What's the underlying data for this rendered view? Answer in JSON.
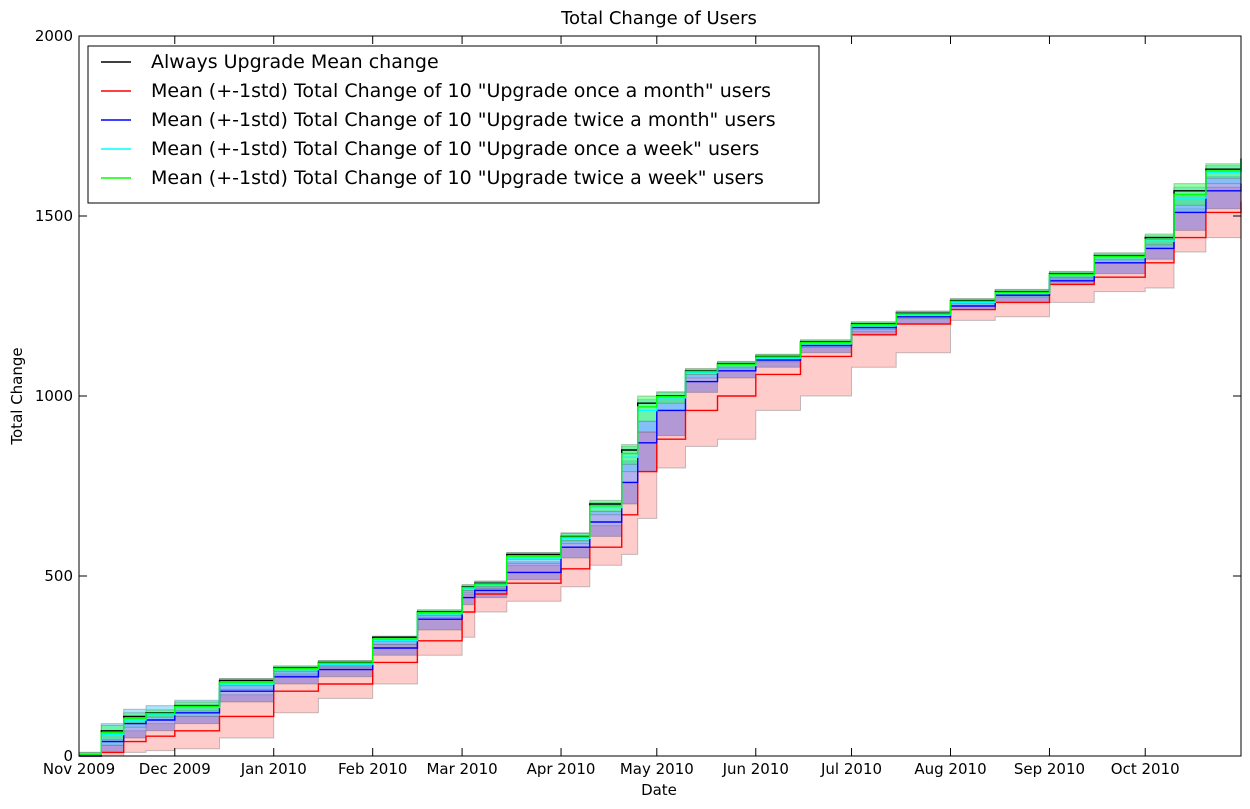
{
  "chart_data": {
    "type": "area",
    "title": "Total Change of Users",
    "xlabel": "Date",
    "ylabel": "Total Change",
    "xlim": [
      "2009-11-01",
      "2010-10-31"
    ],
    "ylim": [
      0,
      2000
    ],
    "yticks": [
      0,
      500,
      1000,
      1500,
      2000
    ],
    "xticks": [
      {
        "date": "2009-11-01",
        "label": "Nov 2009"
      },
      {
        "date": "2009-12-01",
        "label": "Dec 2009"
      },
      {
        "date": "2010-01-01",
        "label": "Jan 2010"
      },
      {
        "date": "2010-02-01",
        "label": "Feb 2010"
      },
      {
        "date": "2010-03-01",
        "label": "Mar 2010"
      },
      {
        "date": "2010-04-01",
        "label": "Apr 2010"
      },
      {
        "date": "2010-05-01",
        "label": "May 2010"
      },
      {
        "date": "2010-06-01",
        "label": "Jun 2010"
      },
      {
        "date": "2010-07-01",
        "label": "Jul 2010"
      },
      {
        "date": "2010-08-01",
        "label": "Aug 2010"
      },
      {
        "date": "2010-09-01",
        "label": "Sep 2010"
      },
      {
        "date": "2010-10-01",
        "label": "Oct 2010"
      }
    ],
    "legend_position": "top-left",
    "grid": false,
    "x": [
      "2009-11-01",
      "2009-11-08",
      "2009-11-15",
      "2009-11-22",
      "2009-12-01",
      "2009-12-15",
      "2010-01-01",
      "2010-01-15",
      "2010-02-01",
      "2010-02-15",
      "2010-03-01",
      "2010-03-05",
      "2010-03-15",
      "2010-04-01",
      "2010-04-10",
      "2010-04-20",
      "2010-04-25",
      "2010-05-01",
      "2010-05-10",
      "2010-05-20",
      "2010-06-01",
      "2010-06-15",
      "2010-07-01",
      "2010-07-15",
      "2010-08-01",
      "2010-08-15",
      "2010-09-01",
      "2010-09-15",
      "2010-10-01",
      "2010-10-10",
      "2010-10-20",
      "2010-10-31"
    ],
    "series": [
      {
        "name": "Always Upgrade Mean change",
        "color": "#000000",
        "mean": [
          5,
          70,
          110,
          120,
          140,
          210,
          245,
          260,
          330,
          400,
          470,
          480,
          560,
          610,
          700,
          850,
          980,
          1000,
          1070,
          1090,
          1110,
          1150,
          1200,
          1230,
          1265,
          1290,
          1340,
          1390,
          1440,
          1570,
          1630,
          1660
        ]
      },
      {
        "name": "Mean (+-1std) Total Change of 10 \"Upgrade once a month\" users",
        "color": "#ff0000",
        "fill": "#ff9999",
        "mean": [
          0,
          10,
          40,
          55,
          70,
          110,
          180,
          200,
          260,
          320,
          400,
          450,
          480,
          520,
          580,
          670,
          790,
          880,
          960,
          1000,
          1060,
          1110,
          1170,
          1200,
          1240,
          1260,
          1310,
          1330,
          1370,
          1440,
          1510,
          1540
        ],
        "lower": [
          0,
          0,
          10,
          15,
          20,
          50,
          120,
          160,
          200,
          280,
          330,
          400,
          430,
          470,
          530,
          560,
          660,
          800,
          860,
          880,
          960,
          1000,
          1080,
          1120,
          1210,
          1220,
          1260,
          1290,
          1300,
          1400,
          1440,
          1450
        ],
        "upper": [
          5,
          30,
          70,
          90,
          110,
          170,
          230,
          250,
          310,
          380,
          450,
          470,
          530,
          580,
          640,
          760,
          900,
          960,
          1040,
          1070,
          1100,
          1140,
          1180,
          1220,
          1250,
          1280,
          1330,
          1370,
          1430,
          1520,
          1580,
          1600
        ]
      },
      {
        "name": "Mean (+-1std) Total Change of 10 \"Upgrade twice a month\" users",
        "color": "#0000ff",
        "fill": "#6666dd",
        "mean": [
          0,
          40,
          90,
          100,
          120,
          180,
          220,
          240,
          300,
          380,
          440,
          460,
          510,
          580,
          650,
          760,
          870,
          960,
          1040,
          1070,
          1100,
          1140,
          1190,
          1220,
          1250,
          1280,
          1320,
          1370,
          1410,
          1510,
          1570,
          1590
        ],
        "lower": [
          0,
          10,
          50,
          70,
          90,
          150,
          200,
          220,
          280,
          350,
          420,
          440,
          490,
          550,
          610,
          700,
          790,
          890,
          1010,
          1050,
          1080,
          1120,
          1170,
          1200,
          1240,
          1260,
          1310,
          1340,
          1380,
          1460,
          1520,
          1550
        ],
        "upper": [
          5,
          70,
          110,
          120,
          140,
          200,
          240,
          260,
          320,
          400,
          460,
          480,
          540,
          600,
          680,
          820,
          930,
          1000,
          1060,
          1090,
          1110,
          1150,
          1200,
          1230,
          1260,
          1290,
          1340,
          1390,
          1430,
          1560,
          1610,
          1630
        ]
      },
      {
        "name": "Mean (+-1std) Total Change of 10 \"Upgrade once a week\" users",
        "color": "#00ffff",
        "fill": "#55ccff",
        "mean": [
          5,
          60,
          100,
          115,
          135,
          200,
          240,
          255,
          320,
          395,
          465,
          475,
          550,
          605,
          690,
          830,
          960,
          995,
          1065,
          1085,
          1105,
          1145,
          1195,
          1225,
          1260,
          1285,
          1335,
          1385,
          1430,
          1550,
          1620,
          1650
        ],
        "lower": [
          0,
          30,
          80,
          100,
          110,
          185,
          225,
          245,
          310,
          385,
          455,
          465,
          535,
          590,
          670,
          790,
          900,
          960,
          1050,
          1075,
          1095,
          1135,
          1185,
          1215,
          1250,
          1275,
          1325,
          1370,
          1410,
          1510,
          1590,
          1620
        ],
        "upper": [
          10,
          90,
          130,
          140,
          155,
          215,
          250,
          265,
          330,
          405,
          475,
          485,
          565,
          620,
          705,
          860,
          990,
          1010,
          1075,
          1095,
          1115,
          1155,
          1205,
          1235,
          1270,
          1295,
          1345,
          1395,
          1445,
          1580,
          1640,
          1665
        ]
      },
      {
        "name": "Mean (+-1std) Total Change of 10 \"Upgrade twice a week\" users",
        "color": "#00ff00",
        "fill": "#33ff55",
        "mean": [
          5,
          65,
          105,
          118,
          138,
          205,
          243,
          258,
          325,
          398,
          468,
          478,
          555,
          608,
          695,
          840,
          970,
          998,
          1068,
          1088,
          1108,
          1148,
          1198,
          1228,
          1263,
          1288,
          1338,
          1388,
          1435,
          1560,
          1625,
          1655
        ],
        "lower": [
          0,
          45,
          90,
          108,
          125,
          195,
          235,
          250,
          318,
          390,
          460,
          470,
          545,
          598,
          680,
          810,
          930,
          980,
          1060,
          1080,
          1100,
          1140,
          1190,
          1220,
          1256,
          1280,
          1330,
          1378,
          1420,
          1530,
          1605,
          1635
        ],
        "upper": [
          10,
          85,
          120,
          128,
          150,
          215,
          250,
          265,
          333,
          406,
          476,
          486,
          565,
          618,
          710,
          865,
          1000,
          1012,
          1076,
          1096,
          1116,
          1156,
          1206,
          1236,
          1270,
          1296,
          1346,
          1398,
          1450,
          1590,
          1645,
          1672
        ]
      }
    ]
  }
}
